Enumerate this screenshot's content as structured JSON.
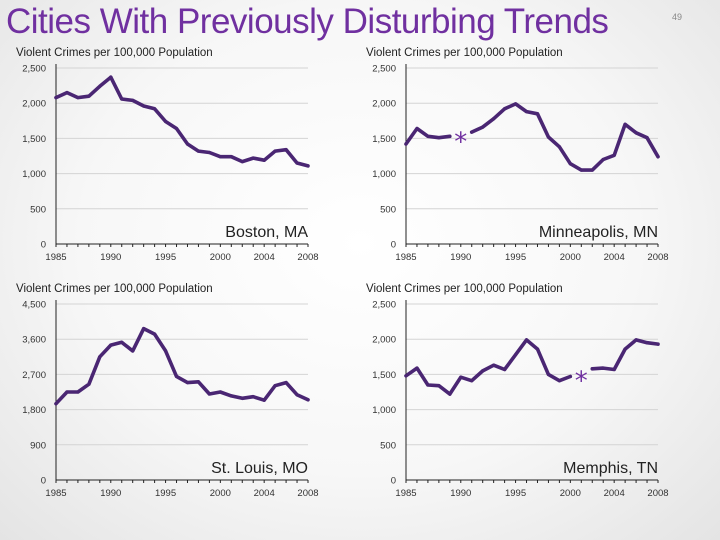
{
  "slide": {
    "title": "Cities With Previously Disturbing Trends",
    "page_number": "49"
  },
  "chart_data": [
    {
      "type": "line",
      "city": "Boston, MA",
      "ylabel": "Violent Crimes per 100,000 Population",
      "ylim": [
        0,
        2500
      ],
      "yticks": [
        0,
        500,
        1000,
        1500,
        2000,
        2500
      ],
      "ytick_labels": [
        "0",
        "500",
        "1,000",
        "1,500",
        "2,000",
        "2,500"
      ],
      "xticks": [
        1985,
        1990,
        1995,
        2000,
        2004,
        2008
      ],
      "x": [
        1985,
        1986,
        1987,
        1988,
        1989,
        1990,
        1991,
        1992,
        1993,
        1994,
        1995,
        1996,
        1997,
        1998,
        1999,
        2000,
        2001,
        2002,
        2003,
        2004,
        2005,
        2006,
        2007,
        2008
      ],
      "values": [
        2080,
        2150,
        2080,
        2100,
        2240,
        2370,
        2060,
        2040,
        1960,
        1920,
        1740,
        1640,
        1420,
        1320,
        1300,
        1240,
        1240,
        1170,
        1220,
        1190,
        1320,
        1340,
        1150,
        1110
      ],
      "marker": null
    },
    {
      "type": "line",
      "city": "Minneapolis, MN",
      "ylabel": "Violent Crimes per 100,000 Population",
      "ylim": [
        0,
        2500
      ],
      "yticks": [
        0,
        500,
        1000,
        1500,
        2000,
        2500
      ],
      "ytick_labels": [
        "0",
        "500",
        "1,000",
        "1,500",
        "2,000",
        "2,500"
      ],
      "xticks": [
        1985,
        1990,
        1995,
        2000,
        2004,
        2008
      ],
      "x": [
        1985,
        1986,
        1987,
        1988,
        1989,
        1990,
        1991,
        1992,
        1993,
        1994,
        1995,
        1996,
        1997,
        1998,
        1999,
        2000,
        2001,
        2002,
        2003,
        2004,
        2005,
        2006,
        2007,
        2008
      ],
      "values": [
        1420,
        1640,
        1530,
        1510,
        1530,
        null,
        1590,
        1660,
        1780,
        1920,
        1990,
        1880,
        1850,
        1520,
        1380,
        1140,
        1050,
        1050,
        1200,
        1260,
        1700,
        1580,
        1510,
        1240
      ],
      "marker": {
        "symbol": "*",
        "year": 1990,
        "value": 1540
      }
    },
    {
      "type": "line",
      "city": "St. Louis, MO",
      "ylabel": "Violent Crimes per 100,000 Population",
      "ylim": [
        0,
        4500
      ],
      "yticks": [
        0,
        900,
        1800,
        2700,
        3600,
        4500
      ],
      "ytick_labels": [
        "0",
        "900",
        "1,800",
        "2,700",
        "3,600",
        "4,500"
      ],
      "xticks": [
        1985,
        1990,
        1995,
        2000,
        2004,
        2008
      ],
      "x": [
        1985,
        1986,
        1987,
        1988,
        1989,
        1990,
        1991,
        1992,
        1993,
        1994,
        1995,
        1996,
        1997,
        1998,
        1999,
        2000,
        2001,
        2002,
        2003,
        2004,
        2005,
        2006,
        2007,
        2008
      ],
      "values": [
        1950,
        2250,
        2250,
        2450,
        3150,
        3450,
        3520,
        3300,
        3870,
        3730,
        3300,
        2650,
        2490,
        2510,
        2200,
        2250,
        2150,
        2090,
        2130,
        2040,
        2410,
        2490,
        2180,
        2050
      ],
      "marker": null
    },
    {
      "type": "line",
      "city": "Memphis, TN",
      "ylabel": "Violent Crimes per 100,000 Population",
      "ylim": [
        0,
        2500
      ],
      "yticks": [
        0,
        500,
        1000,
        1500,
        2000,
        2500
      ],
      "ytick_labels": [
        "0",
        "500",
        "1,000",
        "1,500",
        "2,000",
        "2,500"
      ],
      "xticks": [
        1985,
        1990,
        1995,
        2000,
        2004,
        2008
      ],
      "x": [
        1985,
        1986,
        1987,
        1988,
        1989,
        1990,
        1991,
        1992,
        1993,
        1994,
        1995,
        1996,
        1997,
        1998,
        1999,
        2000,
        2001,
        2002,
        2003,
        2004,
        2005,
        2006,
        2007,
        2008
      ],
      "values": [
        1480,
        1590,
        1350,
        1340,
        1220,
        1460,
        1410,
        1550,
        1630,
        1570,
        1780,
        1990,
        1860,
        1500,
        1410,
        1470,
        null,
        1580,
        1590,
        1570,
        1860,
        1990,
        1950,
        1930
      ],
      "marker": {
        "symbol": "*",
        "year": 2001,
        "value": 1500
      }
    }
  ],
  "colors": {
    "title": "#7030a0",
    "line": "#4a2673",
    "marker": "#7030a0",
    "grid": "#d4d4d4"
  }
}
